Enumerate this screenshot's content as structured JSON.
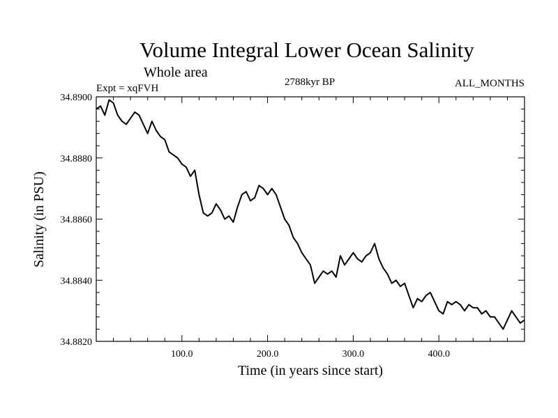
{
  "chart_data": {
    "type": "line",
    "title": "Volume Integral Lower Ocean Salinity",
    "subtitle": "Whole area",
    "experiment_label": "Expt = xqFVH",
    "period_label": "2788kyr BP",
    "months_label": "ALL_MONTHS",
    "xlabel": "Time (in years since start)",
    "ylabel": "Salinity (in PSU)",
    "xlim": [
      0,
      500
    ],
    "ylim": [
      34.882,
      34.89
    ],
    "grid": false,
    "x_ticks": [
      100,
      200,
      300,
      400
    ],
    "x_tick_labels": [
      "100.0",
      "200.0",
      "300.0",
      "400.0"
    ],
    "y_ticks": [
      34.882,
      34.884,
      34.886,
      34.888,
      34.89
    ],
    "y_tick_labels": [
      "34.8820",
      "34.8840",
      "34.8860",
      "34.8880",
      "34.8900"
    ],
    "series": [
      {
        "name": "Salinity",
        "x": [
          0,
          5,
          10,
          15,
          20,
          25,
          30,
          35,
          40,
          45,
          50,
          55,
          60,
          65,
          70,
          75,
          80,
          85,
          90,
          95,
          100,
          105,
          110,
          115,
          120,
          125,
          130,
          135,
          140,
          145,
          150,
          155,
          160,
          165,
          170,
          175,
          180,
          185,
          190,
          195,
          200,
          205,
          210,
          215,
          220,
          225,
          230,
          235,
          240,
          245,
          250,
          255,
          260,
          265,
          270,
          275,
          280,
          285,
          290,
          295,
          300,
          305,
          310,
          315,
          320,
          325,
          330,
          335,
          340,
          345,
          350,
          355,
          360,
          365,
          370,
          375,
          380,
          385,
          390,
          395,
          400,
          405,
          410,
          415,
          420,
          425,
          430,
          435,
          440,
          445,
          450,
          455,
          460,
          465,
          470,
          475,
          480,
          485,
          490,
          495,
          500
        ],
        "values": [
          34.8896,
          34.8897,
          34.8894,
          34.8899,
          34.8898,
          34.8894,
          34.8892,
          34.8891,
          34.8893,
          34.8895,
          34.8894,
          34.8891,
          34.8888,
          34.8892,
          34.8889,
          34.8887,
          34.8886,
          34.8882,
          34.8881,
          34.888,
          34.8878,
          34.8877,
          34.8874,
          34.8876,
          34.8868,
          34.8862,
          34.8861,
          34.8862,
          34.8865,
          34.8863,
          34.886,
          34.8861,
          34.8859,
          34.8864,
          34.8868,
          34.8869,
          34.8866,
          34.8867,
          34.8871,
          34.887,
          34.8868,
          34.887,
          34.8868,
          34.8864,
          34.886,
          34.8858,
          34.8854,
          34.8852,
          34.8849,
          34.8847,
          34.8845,
          34.8839,
          34.8841,
          34.8843,
          34.8842,
          34.8843,
          34.8841,
          34.8848,
          34.8845,
          34.8847,
          34.8849,
          34.8847,
          34.8846,
          34.8848,
          34.8849,
          34.8852,
          34.8847,
          34.8844,
          34.8842,
          34.8839,
          34.884,
          34.8838,
          34.8839,
          34.8835,
          34.8831,
          34.8834,
          34.8833,
          34.8835,
          34.8836,
          34.8833,
          34.883,
          34.8829,
          34.8833,
          34.8832,
          34.8833,
          34.8832,
          34.883,
          34.8832,
          34.8831,
          34.8831,
          34.8829,
          34.883,
          34.8828,
          34.8828,
          34.8826,
          34.8824,
          34.8827,
          34.883,
          34.8828,
          34.8826,
          34.8827
        ]
      }
    ]
  }
}
